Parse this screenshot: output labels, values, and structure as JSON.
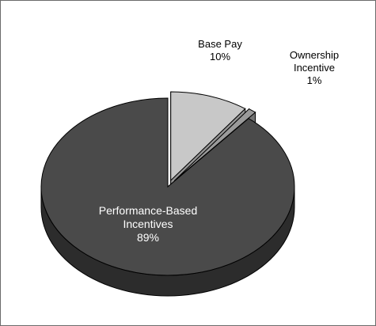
{
  "chart_data": {
    "type": "pie",
    "style": "3d-exploded",
    "slices": [
      {
        "name": "Base Pay",
        "value": 10,
        "label": "10%",
        "color": "#c8c8c8"
      },
      {
        "name": "Ownership Incentive",
        "value": 1,
        "label": "1%",
        "color": "#9a9a9a"
      },
      {
        "name": "Performance-Based Incentives",
        "value": 89,
        "label": "89%",
        "color": "#4a4a4a"
      }
    ],
    "labels": {
      "base_pay": {
        "line1": "Base Pay",
        "line2": "10%"
      },
      "ownership": {
        "line1": "Ownership",
        "line2": "Incentive",
        "line3": "1%"
      },
      "performance": {
        "line1": "Performance-Based",
        "line2": "Incentives",
        "line3": "89%"
      }
    }
  }
}
